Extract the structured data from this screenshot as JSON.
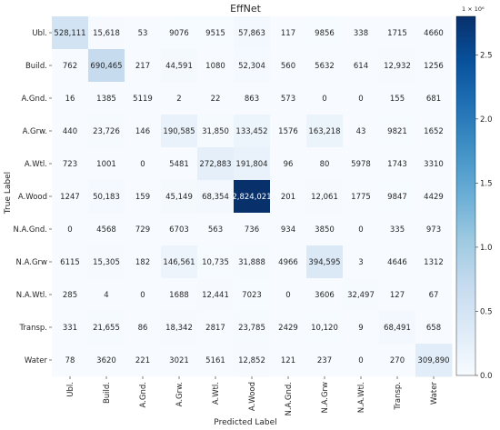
{
  "chart_data": {
    "type": "heatmap",
    "title": "EffNet",
    "xlabel": "Predicted Label",
    "ylabel": "True Label",
    "x_categories": [
      "Ubl.",
      "Build.",
      "A.Gnd.",
      "A.Grw.",
      "A.Wtl.",
      "A.Wood",
      "N.A.Gnd.",
      "N.A.Grw",
      "N.A.Wtl.",
      "Transp.",
      "Water"
    ],
    "y_categories": [
      "Ubl.",
      "Build.",
      "A.Gnd.",
      "A.Grw.",
      "A.Wtl.",
      "A.Wood",
      "N.A.Gnd.",
      "N.A.Grw",
      "N.A.Wtl.",
      "Transp.",
      "Water"
    ],
    "values": [
      [
        528111,
        15618,
        53,
        9076,
        9515,
        57863,
        117,
        9856,
        338,
        1715,
        4660
      ],
      [
        762,
        690465,
        217,
        44591,
        1080,
        52304,
        560,
        5632,
        614,
        12932,
        1256
      ],
      [
        16,
        1385,
        5119,
        2,
        22,
        863,
        573,
        0,
        0,
        155,
        681
      ],
      [
        440,
        23726,
        146,
        190585,
        31850,
        133452,
        1576,
        163218,
        43,
        9821,
        1652
      ],
      [
        723,
        1001,
        0,
        5481,
        272883,
        191804,
        96,
        80,
        5978,
        1743,
        3310
      ],
      [
        1247,
        50183,
        159,
        45149,
        68354,
        2824021,
        201,
        12061,
        1775,
        9847,
        4429
      ],
      [
        0,
        4568,
        729,
        6703,
        563,
        736,
        934,
        3850,
        0,
        335,
        973
      ],
      [
        6115,
        15305,
        182,
        146561,
        10735,
        31888,
        4966,
        394595,
        3,
        4646,
        1312
      ],
      [
        285,
        4,
        0,
        1688,
        12441,
        7023,
        0,
        3606,
        32497,
        127,
        67
      ],
      [
        331,
        21655,
        86,
        18342,
        2817,
        23785,
        2429,
        10120,
        9,
        68491,
        658
      ],
      [
        78,
        3620,
        221,
        3021,
        5161,
        12852,
        121,
        237,
        0,
        270,
        309890
      ]
    ],
    "cell_labels": [
      [
        "528,111",
        "15,618",
        "53",
        "9076",
        "9515",
        "57,863",
        "117",
        "9856",
        "338",
        "1715",
        "4660"
      ],
      [
        "762",
        "690,465",
        "217",
        "44,591",
        "1080",
        "52,304",
        "560",
        "5632",
        "614",
        "12,932",
        "1256"
      ],
      [
        "16",
        "1385",
        "5119",
        "2",
        "22",
        "863",
        "573",
        "0",
        "0",
        "155",
        "681"
      ],
      [
        "440",
        "23,726",
        "146",
        "190,585",
        "31,850",
        "133,452",
        "1576",
        "163,218",
        "43",
        "9821",
        "1652"
      ],
      [
        "723",
        "1001",
        "0",
        "5481",
        "272,883",
        "191,804",
        "96",
        "80",
        "5978",
        "1743",
        "3310"
      ],
      [
        "1247",
        "50,183",
        "159",
        "45,149",
        "68,354",
        "2,824,021",
        "201",
        "12,061",
        "1775",
        "9847",
        "4429"
      ],
      [
        "0",
        "4568",
        "729",
        "6703",
        "563",
        "736",
        "934",
        "3850",
        "0",
        "335",
        "973"
      ],
      [
        "6115",
        "15,305",
        "182",
        "146,561",
        "10,735",
        "31,888",
        "4966",
        "394,595",
        "3",
        "4646",
        "1312"
      ],
      [
        "285",
        "4",
        "0",
        "1688",
        "12,441",
        "7023",
        "0",
        "3606",
        "32,497",
        "127",
        "67"
      ],
      [
        "331",
        "21,655",
        "86",
        "18,342",
        "2817",
        "23,785",
        "2429",
        "10,120",
        "9",
        "68,491",
        "658"
      ],
      [
        "78",
        "3620",
        "221",
        "3021",
        "5161",
        "12,852",
        "121",
        "237",
        "0",
        "270",
        "309,890"
      ]
    ],
    "colorbar": {
      "range": [
        0,
        2.8
      ],
      "ticks": [
        0.0,
        0.5,
        1.0,
        1.5,
        2.0,
        2.5
      ],
      "tick_labels": [
        "0.0",
        "0.5",
        "1.0",
        "1.5",
        "2.0",
        "2.5"
      ],
      "multiplier_label": "1 × 10⁶",
      "colormap": "Blues"
    },
    "colors": {
      "low": "#f7fbff",
      "high": "#08306b",
      "text_dark": "#262626",
      "text_light": "#ffffff"
    },
    "grid": false,
    "legend": "colorbar-right"
  }
}
